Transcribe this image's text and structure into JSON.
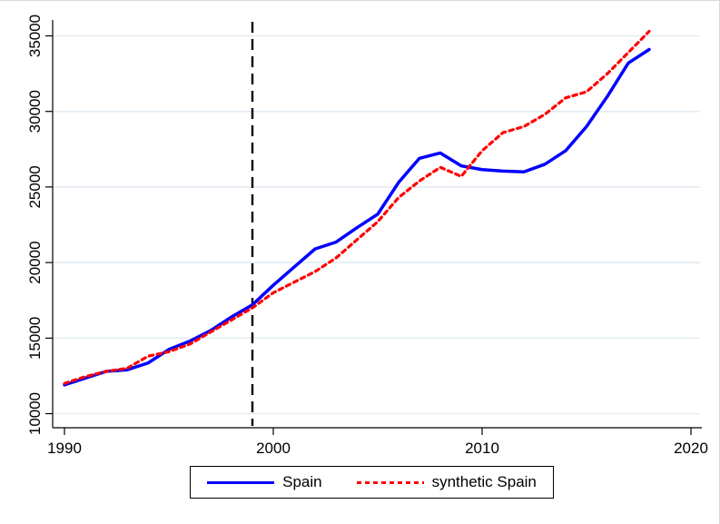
{
  "window": {
    "background": "#ffffff",
    "border_color": "#d9d9d9"
  },
  "chart_data": {
    "type": "line",
    "title": "",
    "xlabel": "",
    "ylabel": "",
    "grid": true,
    "gridline_color": "#e3ecf3",
    "axis_color": "#000000",
    "x": [
      1990,
      1991,
      1992,
      1993,
      1994,
      1995,
      1996,
      1997,
      1998,
      1999,
      2000,
      2001,
      2002,
      2003,
      2004,
      2005,
      2006,
      2007,
      2008,
      2009,
      2010,
      2011,
      2012,
      2013,
      2014,
      2015,
      2016,
      2017,
      2018
    ],
    "series": [
      {
        "name": "Spain",
        "color": "#0000ff",
        "style": "solid",
        "values": [
          11900,
          12350,
          12800,
          12900,
          13350,
          14250,
          14800,
          15500,
          16400,
          17200,
          18500,
          19700,
          20900,
          21350,
          22300,
          23200,
          25300,
          26900,
          27250,
          26400,
          26150,
          26050,
          26000,
          26500,
          27400,
          29000,
          31000,
          33200,
          34100
        ]
      },
      {
        "name": "synthetic Spain",
        "color": "#ff0000",
        "style": "dotted",
        "values": [
          12000,
          12450,
          12800,
          13000,
          13800,
          14100,
          14600,
          15400,
          16200,
          17000,
          18000,
          18700,
          19400,
          20300,
          21500,
          22700,
          24300,
          25400,
          26300,
          25700,
          27400,
          28600,
          29000,
          29800,
          30900,
          31300,
          32500,
          33900,
          35300
        ]
      }
    ],
    "x_ticks": [
      1990,
      2000,
      2010,
      2020
    ],
    "y_ticks": [
      10000,
      15000,
      20000,
      25000,
      30000,
      35000
    ],
    "x_range": [
      1989.4,
      2020.5
    ],
    "y_range": [
      9500,
      36100
    ],
    "treatment_line": {
      "x": 1999,
      "style": "dashed",
      "color": "#000000"
    },
    "legend": {
      "position": "bottom-center",
      "entries": [
        "Spain",
        "synthetic Spain"
      ]
    }
  }
}
